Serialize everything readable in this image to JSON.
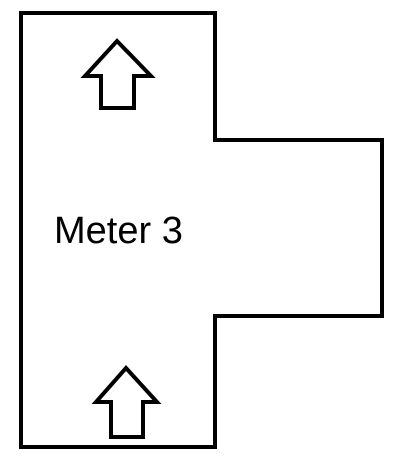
{
  "diagram": {
    "label": "Meter 3",
    "arrows": [
      {
        "name": "up-arrow-top",
        "direction": "up"
      },
      {
        "name": "up-arrow-bottom",
        "direction": "up"
      }
    ]
  },
  "colors": {
    "stroke": "#000000",
    "fill": "#ffffff",
    "text": "#000000"
  }
}
